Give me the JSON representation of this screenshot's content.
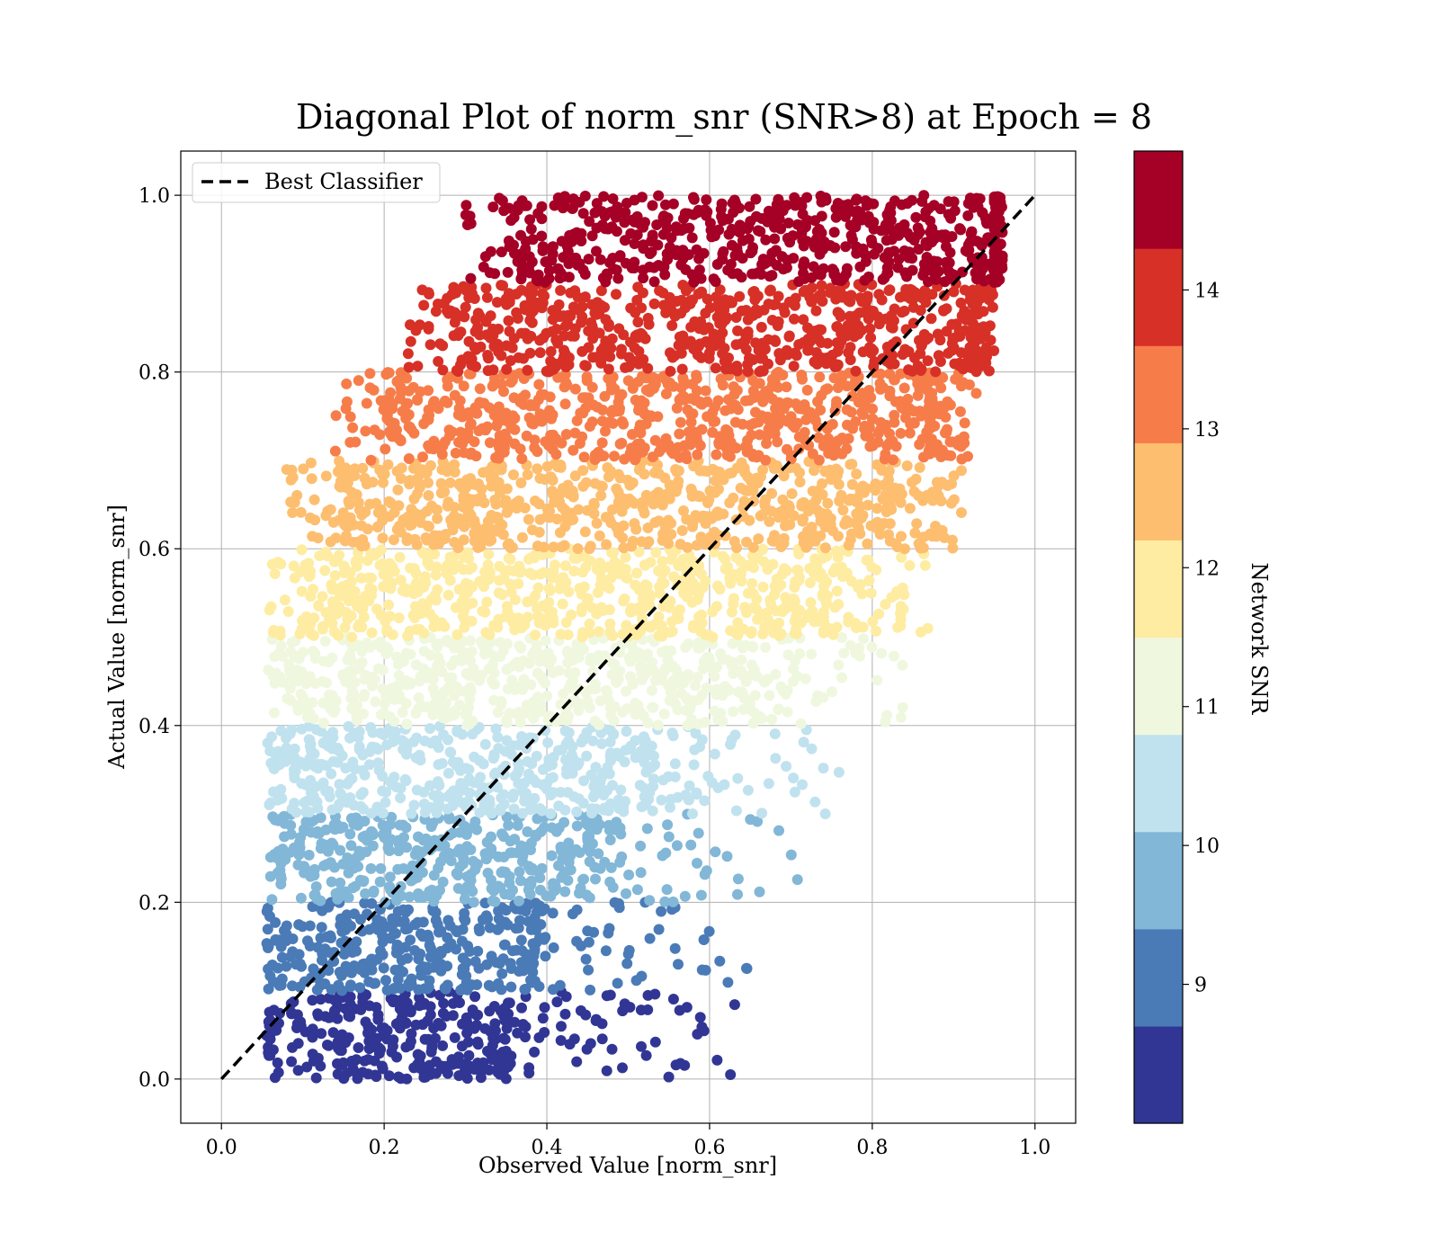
{
  "chart_data": {
    "type": "scatter",
    "title": "Diagonal Plot of norm_snr (SNR>8) at Epoch = 8",
    "xlabel": "Observed Value [norm_snr]",
    "ylabel": "Actual Value [norm_snr]",
    "xlim": [
      -0.05,
      1.05
    ],
    "ylim": [
      -0.05,
      1.05
    ],
    "xticks": [
      "0.0",
      "0.2",
      "0.4",
      "0.6",
      "0.8",
      "1.0"
    ],
    "yticks": [
      "0.0",
      "0.2",
      "0.4",
      "0.6",
      "0.8",
      "1.0"
    ],
    "grid": true,
    "legend": {
      "position": "top-left",
      "entries": [
        "Best Classifier"
      ]
    },
    "reference_line": {
      "name": "Best Classifier",
      "style": "dashed",
      "color": "#000000",
      "x": [
        0.0,
        1.0
      ],
      "y": [
        0.0,
        1.0
      ]
    },
    "colorbar": {
      "label": "Network SNR",
      "range": [
        8,
        15
      ],
      "ticks": [
        "9",
        "10",
        "11",
        "12",
        "13",
        "14"
      ],
      "colors": [
        "#313695",
        "#4a7bb7",
        "#82b7d7",
        "#c0e2ee",
        "#eff8df",
        "#feeca2",
        "#fdbe70",
        "#f67d4a",
        "#d73027",
        "#a50026"
      ]
    },
    "bands": [
      {
        "y": [
          0.0,
          0.1
        ],
        "x_core": [
          0.06,
          0.35
        ],
        "x_tail": 0.64,
        "color": "#313695"
      },
      {
        "y": [
          0.1,
          0.2
        ],
        "x_core": [
          0.06,
          0.38
        ],
        "x_tail": 0.66,
        "color": "#4a7bb7"
      },
      {
        "y": [
          0.2,
          0.3
        ],
        "x_core": [
          0.07,
          0.45
        ],
        "x_tail": 0.72,
        "color": "#82b7d7"
      },
      {
        "y": [
          0.3,
          0.4
        ],
        "x_core": [
          0.07,
          0.52
        ],
        "x_tail": 0.76,
        "color": "#c0e2ee"
      },
      {
        "y": [
          0.4,
          0.5
        ],
        "x_core": [
          0.09,
          0.64
        ],
        "x_tail": 0.84,
        "color": "#eff8df"
      },
      {
        "y": [
          0.5,
          0.6
        ],
        "x_core": [
          0.11,
          0.74
        ],
        "x_tail": 0.87,
        "color": "#feeca2"
      },
      {
        "y": [
          0.6,
          0.7
        ],
        "x_core": [
          0.15,
          0.82
        ],
        "x_tail": 0.91,
        "color": "#fdbe70"
      },
      {
        "y": [
          0.7,
          0.8
        ],
        "x_core": [
          0.21,
          0.87
        ],
        "x_tail": 0.93,
        "color": "#f67d4a"
      },
      {
        "y": [
          0.8,
          0.9
        ],
        "x_core": [
          0.29,
          0.92
        ],
        "x_tail": 0.95,
        "color": "#d73027"
      },
      {
        "y": [
          0.9,
          1.0
        ],
        "x_core": [
          0.37,
          0.95
        ],
        "x_tail": 0.96,
        "color": "#a50026"
      }
    ]
  }
}
